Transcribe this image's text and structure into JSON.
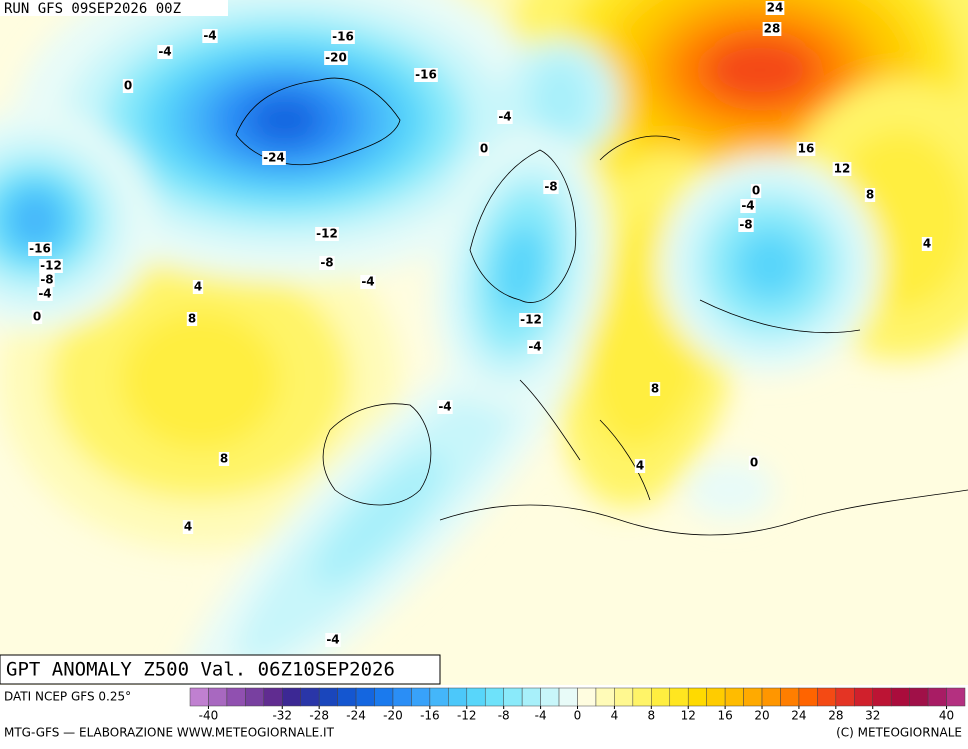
{
  "header": {
    "run": "RUN GFS 09SEP2026 00Z"
  },
  "map": {
    "title": "GPT ANOMALY Z500 Val. 06Z10SEP2026",
    "contour_labels": [
      -4,
      -16,
      -4,
      -20,
      -16,
      0,
      -4,
      0,
      -24,
      -8,
      -16,
      -12,
      -8,
      -4,
      -12,
      -8,
      -4,
      4,
      8,
      0,
      -12,
      -4,
      24,
      28,
      16,
      12,
      8,
      0,
      -4,
      -8,
      4,
      8,
      -4,
      8,
      4,
      0,
      4,
      -4
    ]
  },
  "colorbar": {
    "source": "DATI NCEP GFS 0.25°",
    "lim": [
      -42,
      42
    ],
    "colors": [
      "#c080d0",
      "#a868c0",
      "#9050b0",
      "#7840a0",
      "#602c90",
      "#3c2894",
      "#2a36a8",
      "#1a46bc",
      "#1456d0",
      "#1466e0",
      "#1a7aee",
      "#2a8ef6",
      "#38a2fa",
      "#44b6fa",
      "#4cc8fa",
      "#58d6fa",
      "#6ee2fa",
      "#8aeafa",
      "#a8f0fa",
      "#c8f6fa",
      "#e8fbf8",
      "#fffde0",
      "#fffbb8",
      "#fff890",
      "#fff468",
      "#ffee40",
      "#ffe620",
      "#ffda00",
      "#ffcc00",
      "#ffbc00",
      "#ffaa00",
      "#ff9600",
      "#ff7e00",
      "#ff6400",
      "#f44a14",
      "#e43424",
      "#d0202c",
      "#bc1434",
      "#aa0c3c",
      "#a01048",
      "#a81c64",
      "#b43080"
    ],
    "ticks": [
      -40,
      -32,
      -28,
      -24,
      -20,
      -16,
      -12,
      -8,
      -4,
      0,
      4,
      8,
      12,
      16,
      20,
      24,
      28,
      32,
      40
    ]
  },
  "footer": {
    "left": "MTG-GFS — ELABORAZIONE WWW.METEOGIORNALE.IT",
    "right": "(C) METEOGIORNALE"
  }
}
